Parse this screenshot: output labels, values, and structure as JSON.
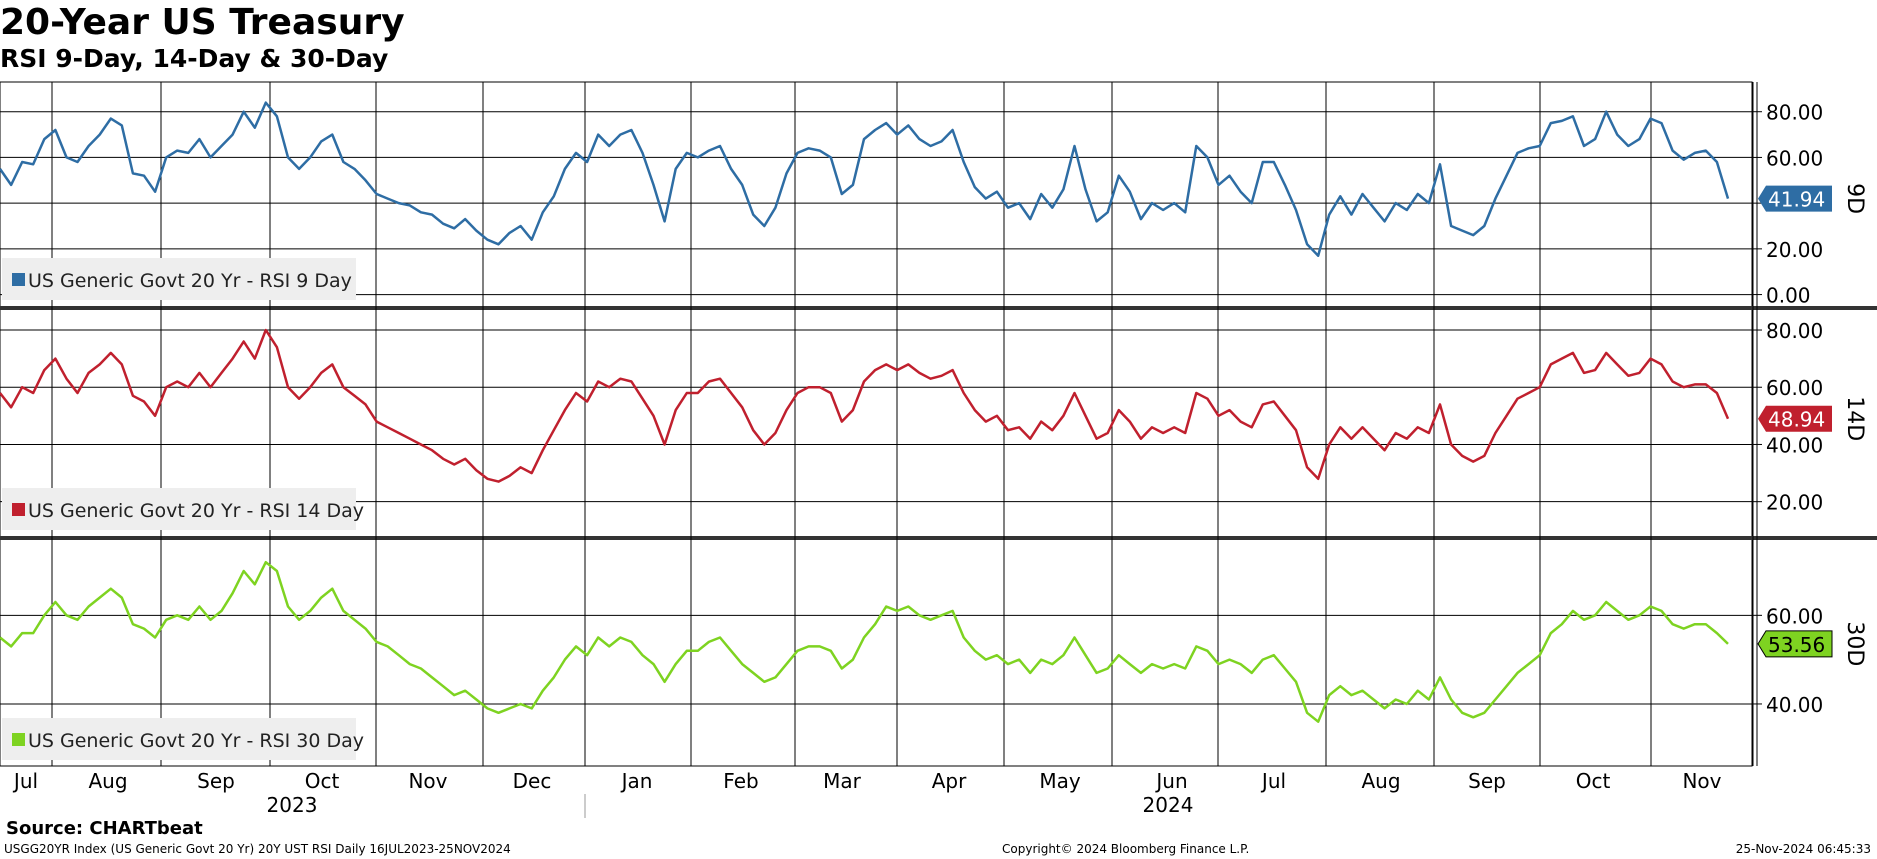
{
  "title": "20-Year US Treasury",
  "subtitle": "RSI 9-Day, 14-Day & 30-Day",
  "source": "Source: CHARTbeat",
  "footer": {
    "left": "USGG20YR Index (US Generic Govt 20 Yr) 20Y UST RSI  Daily 16JUL2023-25NOV2024",
    "center": "Copyright© 2024 Bloomberg Finance L.P.",
    "right": "25-Nov-2024 06:45:33"
  },
  "chart_data": [
    {
      "type": "line",
      "panel": "9D",
      "axis_label": "9D",
      "series": [
        {
          "name": "US Generic Govt 20 Yr - RSI 9 Day",
          "color": "#2e6da4",
          "values": [
            55,
            48,
            58,
            57,
            68,
            72,
            60,
            58,
            65,
            70,
            77,
            74,
            53,
            52,
            45,
            60,
            63,
            62,
            68,
            60,
            65,
            70,
            80,
            73,
            84,
            78,
            60,
            55,
            60,
            67,
            70,
            58,
            55,
            50,
            44,
            42,
            40,
            39,
            36,
            35,
            31,
            29,
            33,
            28,
            24,
            22,
            27,
            30,
            24,
            36,
            43,
            55,
            62,
            58,
            70,
            65,
            70,
            72,
            62,
            48,
            32,
            55,
            62,
            60,
            63,
            65,
            55,
            48,
            35,
            30,
            38,
            53,
            62,
            64,
            63,
            60,
            44,
            48,
            68,
            72,
            75,
            70,
            74,
            68,
            65,
            67,
            72,
            58,
            47,
            42,
            45,
            38,
            40,
            33,
            44,
            38,
            46,
            65,
            46,
            32,
            36,
            52,
            45,
            33,
            40,
            37,
            40,
            36,
            65,
            60,
            48,
            52,
            45,
            40,
            58,
            58,
            48,
            37,
            22,
            17,
            35,
            43,
            35,
            44,
            38,
            32,
            40,
            37,
            44,
            40,
            57,
            30,
            28,
            26,
            30,
            42,
            52,
            62,
            64,
            65,
            75,
            76,
            78,
            65,
            68,
            80,
            70,
            65,
            68,
            77,
            75,
            63,
            59,
            62,
            63,
            58,
            42
          ]
        }
      ],
      "y_ticks": [
        80,
        60,
        40,
        20,
        0
      ],
      "y_tick_labels": [
        "80.00",
        "60.00",
        "",
        "20.00",
        "0.00"
      ],
      "ylim": [
        -5,
        93
      ],
      "last_value": "41.94",
      "legend": "US Generic Govt 20 Yr - RSI 9 Day"
    },
    {
      "type": "line",
      "panel": "14D",
      "axis_label": "14D",
      "series": [
        {
          "name": "US Generic Govt 20 Yr - RSI 14 Day",
          "color": "#c0202e",
          "values": [
            58,
            53,
            60,
            58,
            66,
            70,
            63,
            58,
            65,
            68,
            72,
            68,
            57,
            55,
            50,
            60,
            62,
            60,
            65,
            60,
            65,
            70,
            76,
            70,
            80,
            74,
            60,
            56,
            60,
            65,
            68,
            60,
            57,
            54,
            48,
            46,
            44,
            42,
            40,
            38,
            35,
            33,
            35,
            31,
            28,
            27,
            29,
            32,
            30,
            38,
            45,
            52,
            58,
            55,
            62,
            60,
            63,
            62,
            56,
            50,
            40,
            52,
            58,
            58,
            62,
            63,
            58,
            53,
            45,
            40,
            44,
            52,
            58,
            60,
            60,
            58,
            48,
            52,
            62,
            66,
            68,
            66,
            68,
            65,
            63,
            64,
            66,
            58,
            52,
            48,
            50,
            45,
            46,
            42,
            48,
            45,
            50,
            58,
            50,
            42,
            44,
            52,
            48,
            42,
            46,
            44,
            46,
            44,
            58,
            56,
            50,
            52,
            48,
            46,
            54,
            55,
            50,
            45,
            32,
            28,
            40,
            46,
            42,
            46,
            42,
            38,
            44,
            42,
            46,
            44,
            54,
            40,
            36,
            34,
            36,
            44,
            50,
            56,
            58,
            60,
            68,
            70,
            72,
            65,
            66,
            72,
            68,
            64,
            65,
            70,
            68,
            62,
            60,
            61,
            61,
            58,
            49
          ]
        }
      ],
      "y_ticks": [
        80,
        60,
        40,
        20
      ],
      "y_tick_labels": [
        "80.00",
        "60.00",
        "40.00",
        "20.00"
      ],
      "ylim": [
        8,
        87
      ],
      "last_value": "48.94",
      "legend": "US Generic Govt 20 Yr - RSI 14 Day"
    },
    {
      "type": "line",
      "panel": "30D",
      "axis_label": "30D",
      "series": [
        {
          "name": "US Generic Govt 20 Yr - RSI 30 Day",
          "color": "#7ed321",
          "values": [
            55,
            53,
            56,
            56,
            60,
            63,
            60,
            59,
            62,
            64,
            66,
            64,
            58,
            57,
            55,
            59,
            60,
            59,
            62,
            59,
            61,
            65,
            70,
            67,
            72,
            70,
            62,
            59,
            61,
            64,
            66,
            61,
            59,
            57,
            54,
            53,
            51,
            49,
            48,
            46,
            44,
            42,
            43,
            41,
            39,
            38,
            39,
            40,
            39,
            43,
            46,
            50,
            53,
            51,
            55,
            53,
            55,
            54,
            51,
            49,
            45,
            49,
            52,
            52,
            54,
            55,
            52,
            49,
            47,
            45,
            46,
            49,
            52,
            53,
            53,
            52,
            48,
            50,
            55,
            58,
            62,
            61,
            62,
            60,
            59,
            60,
            61,
            55,
            52,
            50,
            51,
            49,
            50,
            47,
            50,
            49,
            51,
            55,
            51,
            47,
            48,
            51,
            49,
            47,
            49,
            48,
            49,
            48,
            53,
            52,
            49,
            50,
            49,
            47,
            50,
            51,
            48,
            45,
            38,
            36,
            42,
            44,
            42,
            43,
            41,
            39,
            41,
            40,
            43,
            41,
            46,
            41,
            38,
            37,
            38,
            41,
            44,
            47,
            49,
            51,
            56,
            58,
            61,
            59,
            60,
            63,
            61,
            59,
            60,
            62,
            61,
            58,
            57,
            58,
            58,
            56,
            53.56
          ]
        }
      ],
      "y_ticks": [
        60,
        40
      ],
      "y_tick_labels": [
        "60.00",
        "40.00"
      ],
      "ylim": [
        26,
        77
      ],
      "last_value": "53.56",
      "legend": "US Generic Govt 20 Yr - RSI 30 Day"
    }
  ],
  "x_axis": {
    "months": [
      "Jul",
      "Aug",
      "Sep",
      "Oct",
      "Nov",
      "Dec",
      "Jan",
      "Feb",
      "Mar",
      "Apr",
      "May",
      "Jun",
      "Jul",
      "Aug",
      "Sep",
      "Oct",
      "Nov"
    ],
    "years": [
      "2023",
      "2024"
    ]
  }
}
